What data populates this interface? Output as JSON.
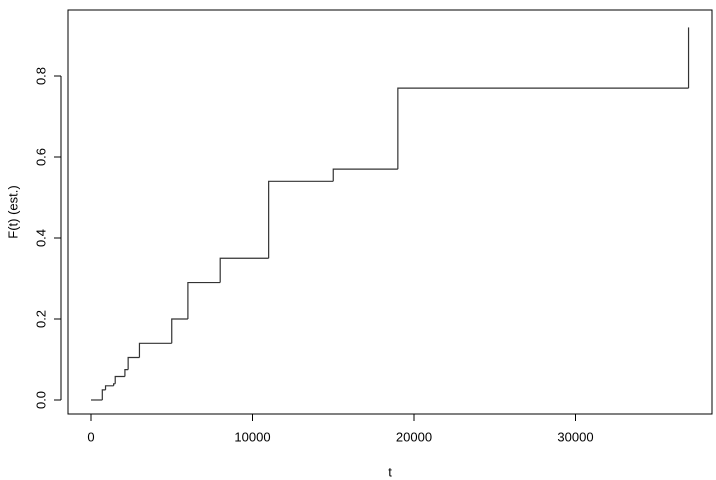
{
  "chart_data": {
    "type": "step",
    "x_label": "t",
    "y_label": "F(t) (est.)",
    "x": [
      0,
      700,
      900,
      1400,
      1500,
      2100,
      2300,
      3000,
      5000,
      6000,
      8000,
      11000,
      15000,
      19000,
      37000
    ],
    "values": [
      0,
      0.025,
      0.035,
      0.04,
      0.058,
      0.075,
      0.105,
      0.14,
      0.2,
      0.29,
      0.35,
      0.54,
      0.57,
      0.77,
      0.92
    ],
    "color": "#333333",
    "xlim": [
      -1424,
      38452
    ],
    "ylim": [
      -0.0346,
      0.963
    ],
    "xticks": [
      0,
      10000,
      20000,
      30000
    ],
    "yticks": [
      {
        "value": 0,
        "label": "0.0"
      },
      0.2,
      0.4,
      0.6,
      0.8
    ]
  }
}
